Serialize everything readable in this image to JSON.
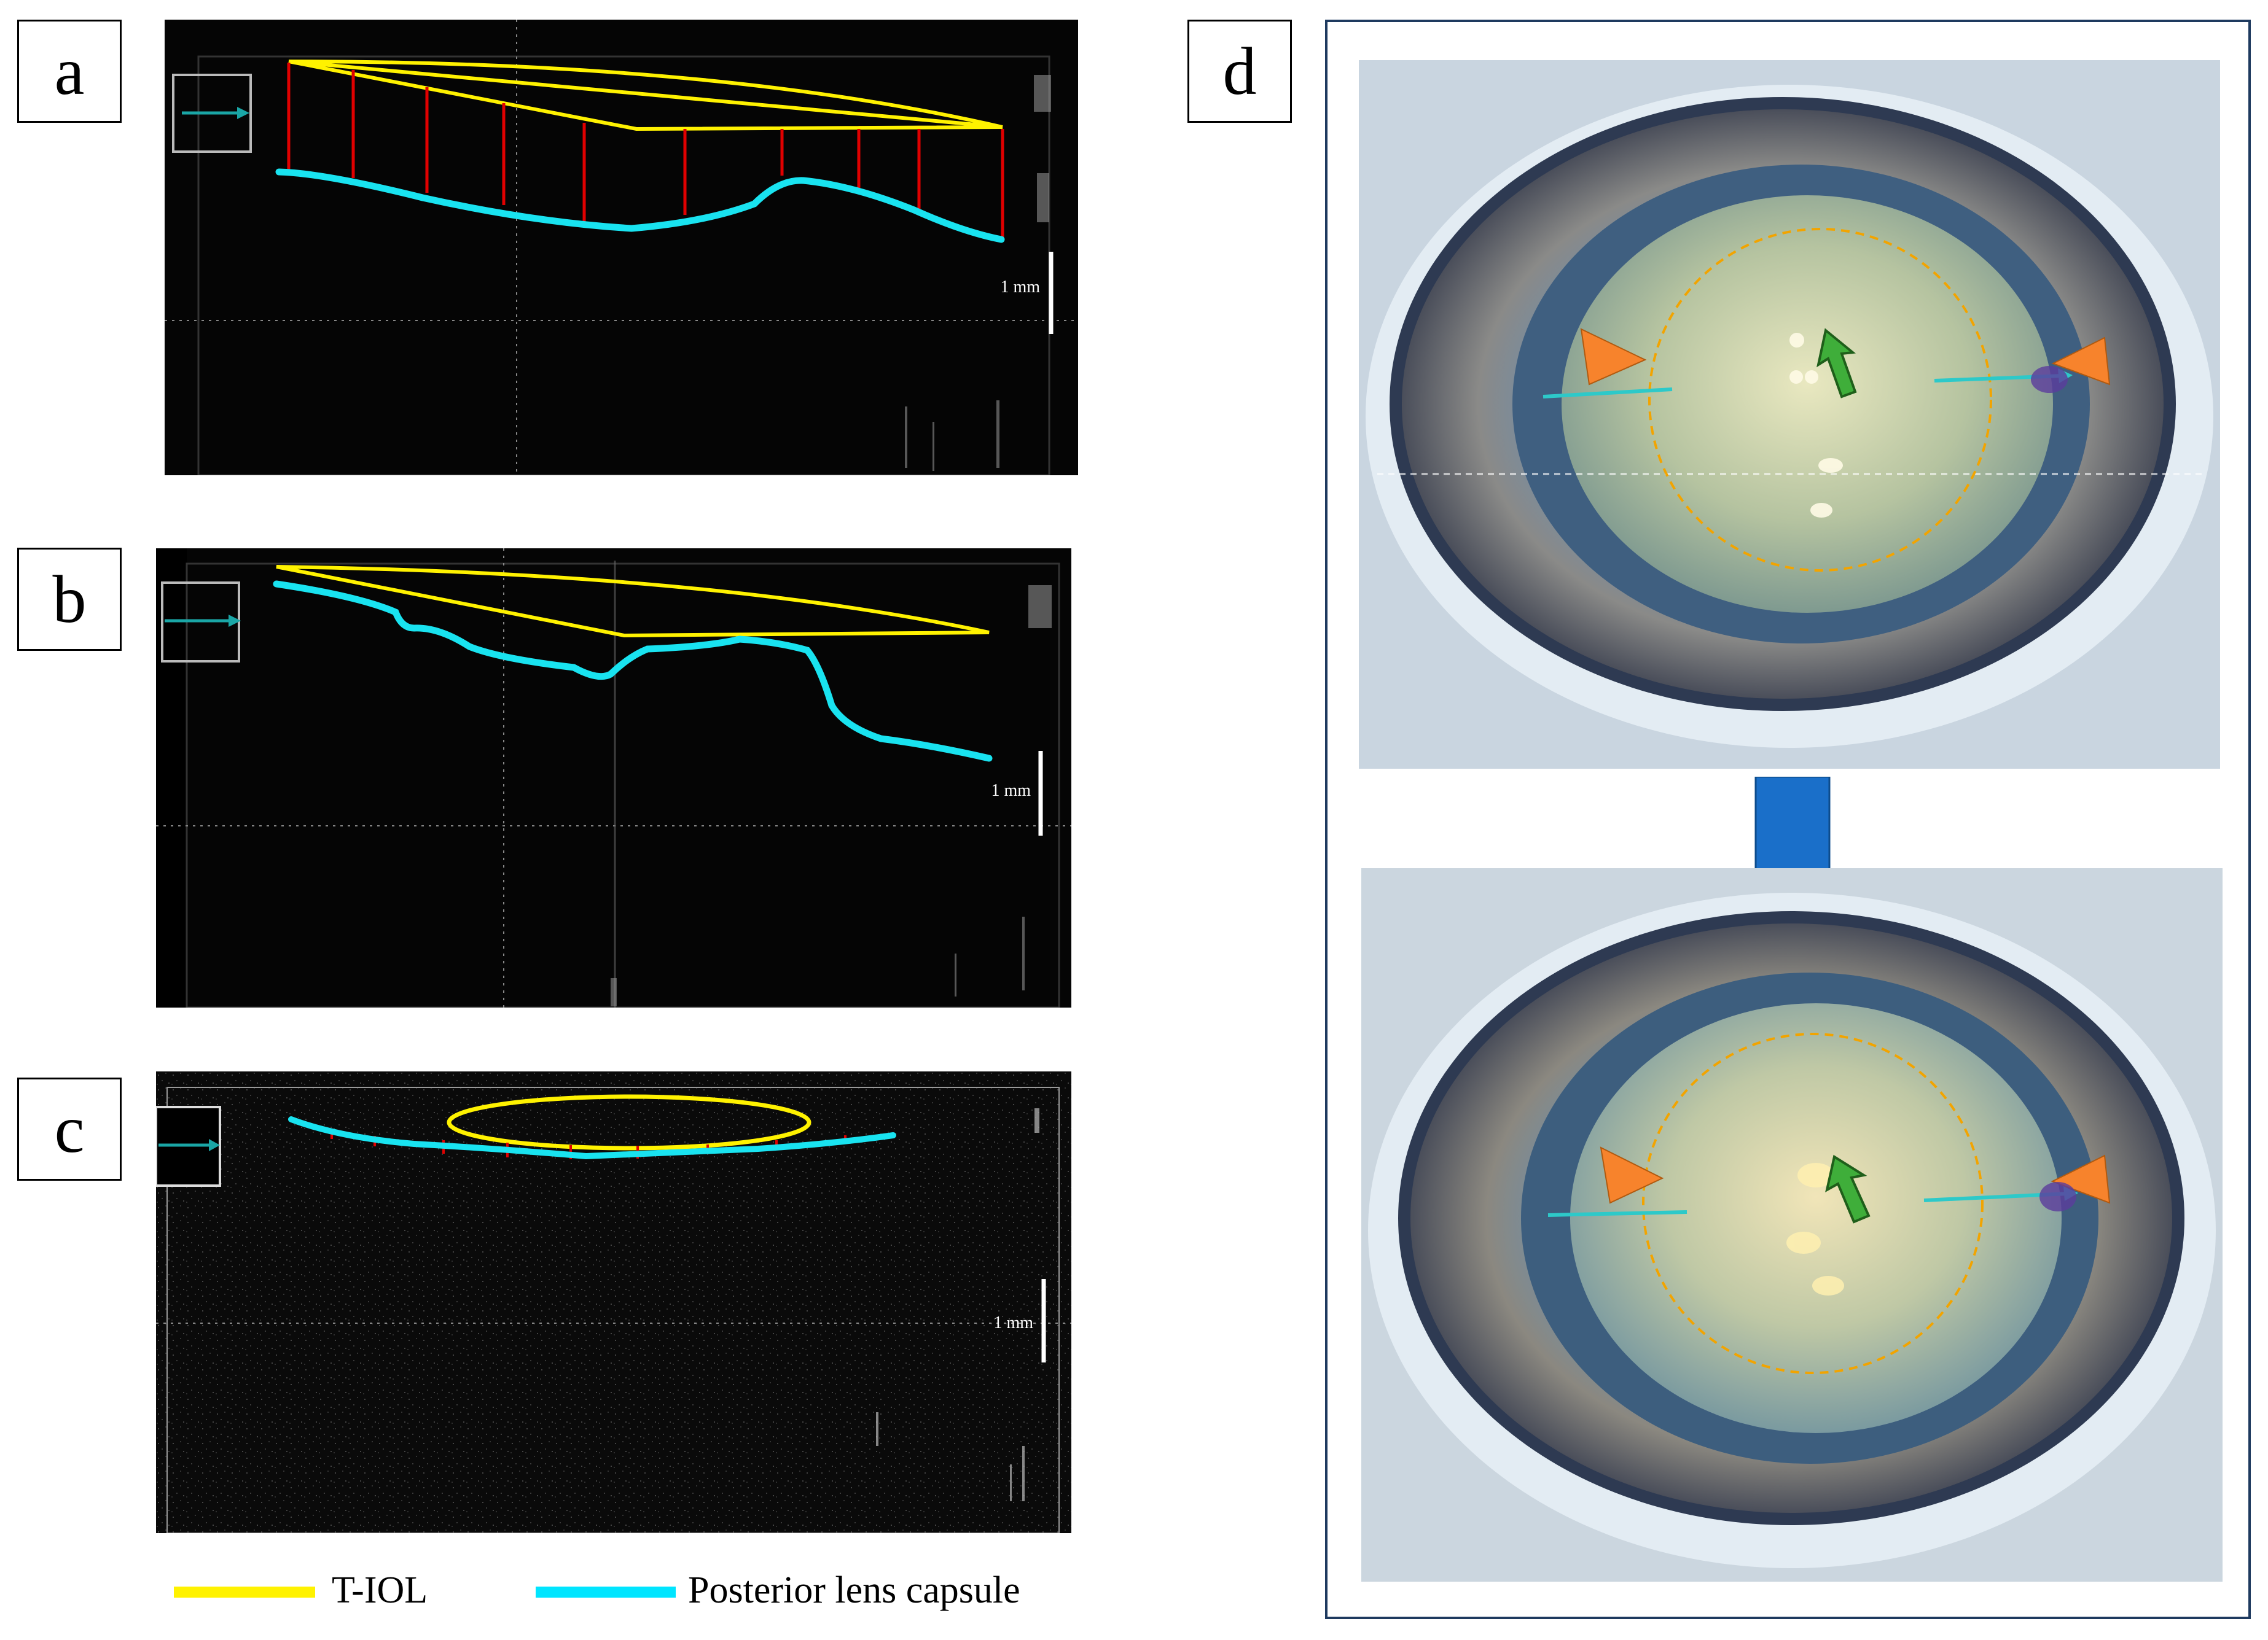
{
  "panels": {
    "a": {
      "letter": "a",
      "scale_label": "1 mm"
    },
    "b": {
      "letter": "b",
      "scale_label": "1 mm"
    },
    "c": {
      "letter": "c",
      "scale_label": "1 mm"
    },
    "d": {
      "letter": "d"
    }
  },
  "legend": {
    "items": [
      {
        "label": "T-IOL",
        "color": "#fff200"
      },
      {
        "label": "Posterior lens capsule",
        "color": "#00e5ff"
      }
    ]
  },
  "colors": {
    "iol_outline": "#fff200",
    "capsule": "#19e3f0",
    "distance_marker": "#e00000",
    "frame_border": "#1e3a5f",
    "transition_arrow": "#1a6fc9",
    "arrowhead_marker": "#f7832c",
    "center_arrow": "#3fae3a",
    "optic_circle": "#f2a400"
  }
}
